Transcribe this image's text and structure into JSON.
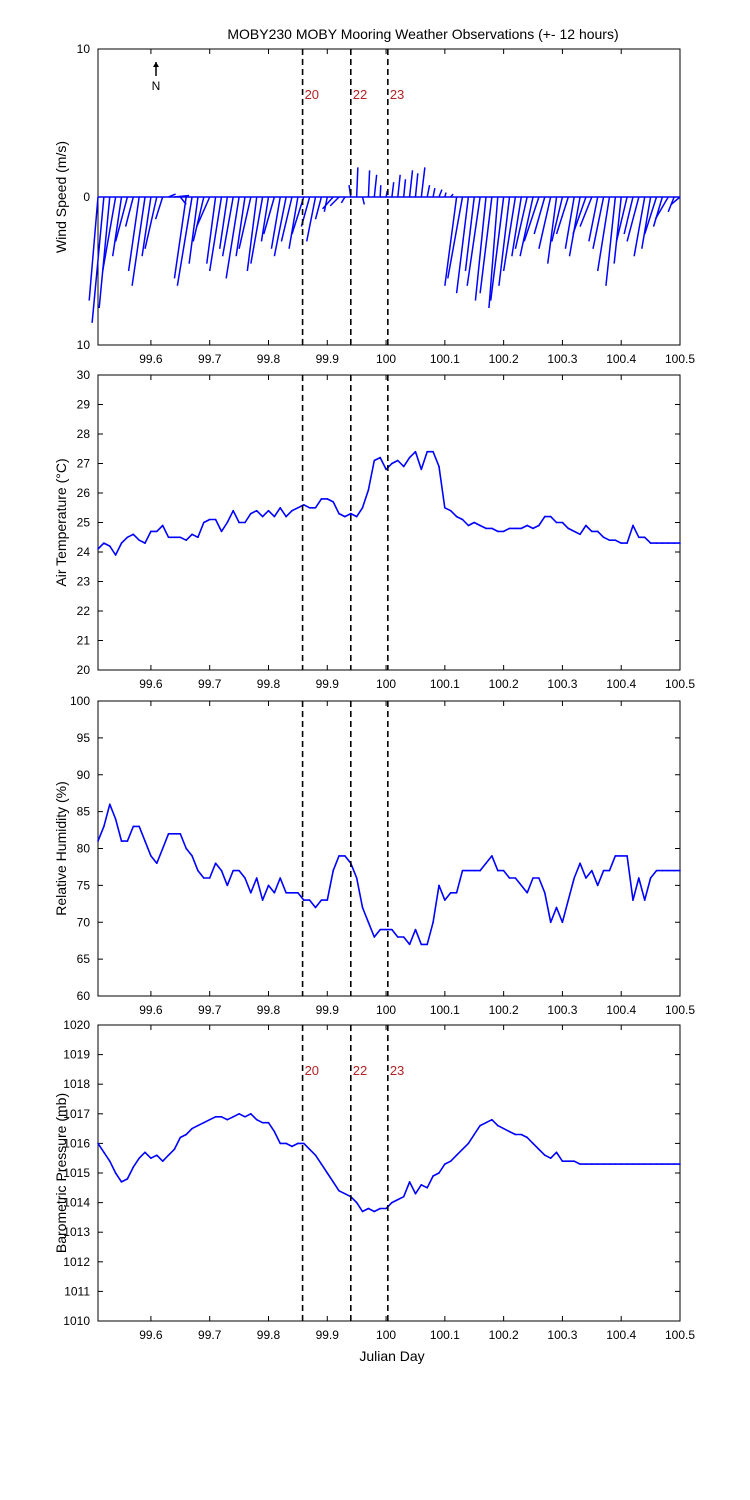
{
  "title": "MOBY230 MOBY Mooring Weather Observations (+- 12 hours)",
  "xlabel": "Julian Day",
  "colors": {
    "series": "#0000ff",
    "event": "#b22222",
    "axis": "#000000"
  },
  "north_label": "N",
  "events": [
    {
      "label": "20",
      "x": 99.858
    },
    {
      "label": "22",
      "x": 99.94
    },
    {
      "label": "23",
      "x": 100.003
    }
  ],
  "chart_data": [
    {
      "type": "quiver",
      "ylabel": "Wind Speed (m/s)",
      "xlim": [
        99.51,
        100.5
      ],
      "ylim": [
        -10,
        10
      ],
      "ytick_labels": [
        "10",
        "0",
        "10"
      ],
      "xticks": [
        99.6,
        99.7,
        99.8,
        99.9,
        100,
        100.1,
        100.2,
        100.3,
        100.4,
        100.5
      ],
      "event_labels": true,
      "x": [
        99.51,
        99.52,
        99.53,
        99.54,
        99.55,
        99.56,
        99.57,
        99.58,
        99.59,
        99.6,
        99.61,
        99.62,
        99.63,
        99.64,
        99.65,
        99.66,
        99.67,
        99.68,
        99.69,
        99.7,
        99.71,
        99.72,
        99.73,
        99.74,
        99.75,
        99.76,
        99.77,
        99.78,
        99.79,
        99.8,
        99.81,
        99.82,
        99.83,
        99.84,
        99.85,
        99.86,
        99.87,
        99.88,
        99.89,
        99.9,
        99.91,
        99.92,
        99.93,
        99.94,
        99.95,
        99.96,
        99.97,
        99.98,
        99.99,
        100.0,
        100.01,
        100.02,
        100.03,
        100.04,
        100.05,
        100.06,
        100.07,
        100.08,
        100.09,
        100.1,
        100.11,
        100.12,
        100.13,
        100.14,
        100.15,
        100.16,
        100.17,
        100.18,
        100.19,
        100.2,
        100.21,
        100.22,
        100.23,
        100.24,
        100.25,
        100.26,
        100.27,
        100.28,
        100.29,
        100.3,
        100.31,
        100.32,
        100.33,
        100.34,
        100.35,
        100.36,
        100.37,
        100.38,
        100.39,
        100.4,
        100.41,
        100.42,
        100.43,
        100.44,
        100.45,
        100.46,
        100.47,
        100.48,
        100.49,
        100.5
      ],
      "u": [
        -1.5,
        -2.0,
        -1.8,
        -2.2,
        -1.5,
        -2.0,
        -1.3,
        -1.8,
        -2.2,
        -1.5,
        -2.0,
        -1.2,
        1.2,
        2.5,
        1.0,
        -2.0,
        -2.5,
        -1.5,
        -1.8,
        -2.2,
        -1.5,
        -2.0,
        -1.3,
        -1.8,
        -2.2,
        -1.5,
        -2.0,
        -1.6,
        -2.0,
        -1.2,
        -1.8,
        -1.5,
        -2.0,
        -1.8,
        -1.5,
        -2.0,
        -1.4,
        -1.5,
        -1.0,
        -0.5,
        -1.8,
        -1.5,
        -0.6,
        -0.3,
        0.2,
        0.3,
        0.2,
        0.4,
        0.1,
        0.2,
        0.3,
        0.4,
        0.3,
        0.5,
        0.4,
        0.6,
        0.4,
        0.3,
        0.5,
        0.2,
        0.4,
        -2.0,
        -2.5,
        -2.0,
        -1.5,
        -2.2,
        -1.8,
        -2.0,
        -1.5,
        -2.2,
        -1.8,
        -2.0,
        -1.6,
        -2.0,
        -2.2,
        -2.5,
        -1.8,
        -2.0,
        -1.5,
        -1.8,
        -2.0,
        -1.5,
        -1.8,
        -2.2,
        -2.0,
        -1.5,
        -1.8,
        -2.0,
        -1.6,
        -1.2,
        -1.8,
        -1.5,
        -2.0,
        -1.8,
        -1.5,
        -2.0,
        -1.5,
        -2.2,
        -1.0,
        -1.5
      ],
      "v": [
        -7.0,
        -8.5,
        -7.5,
        -5.0,
        -4.0,
        -3.0,
        -2.0,
        -5.0,
        -6.0,
        -4.0,
        -3.5,
        -1.5,
        0.2,
        0.1,
        -0.5,
        -5.5,
        -6.0,
        -4.5,
        -3.0,
        -2.0,
        -4.5,
        -5.0,
        -3.5,
        -4.0,
        -5.5,
        -4.0,
        -3.5,
        -5.0,
        -4.5,
        -3.0,
        -2.5,
        -3.5,
        -4.0,
        -3.0,
        -3.5,
        -2.5,
        -2.0,
        -3.0,
        -1.5,
        -1.0,
        -0.8,
        -0.6,
        -0.4,
        0.8,
        2.0,
        -0.5,
        1.8,
        1.5,
        0.8,
        0.4,
        1.0,
        1.5,
        1.2,
        1.8,
        1.6,
        2.0,
        0.8,
        0.6,
        0.5,
        0.3,
        0.2,
        -6.0,
        -5.5,
        -6.5,
        -5.0,
        -6.0,
        -7.0,
        -6.5,
        -7.5,
        -7.0,
        -6.0,
        -5.0,
        -4.0,
        -3.5,
        -4.0,
        -3.0,
        -2.5,
        -3.5,
        -4.5,
        -3.0,
        -2.5,
        -3.5,
        -4.0,
        -2.5,
        -2.0,
        -3.0,
        -3.5,
        -5.0,
        -6.0,
        -4.5,
        -3.0,
        -2.5,
        -3.0,
        -4.0,
        -3.5,
        -2.5,
        -2.0,
        -1.5,
        -1.0,
        -0.5
      ]
    },
    {
      "type": "line",
      "ylabel": "Air Temperature (°C)",
      "xlim": [
        99.51,
        100.5
      ],
      "ylim": [
        20,
        30
      ],
      "yticks": [
        20,
        21,
        22,
        23,
        24,
        25,
        26,
        27,
        28,
        29,
        30
      ],
      "xticks": [
        99.6,
        99.7,
        99.8,
        99.9,
        100,
        100.1,
        100.2,
        100.3,
        100.4,
        100.5
      ],
      "event_labels": false,
      "x": [
        99.51,
        99.52,
        99.53,
        99.54,
        99.55,
        99.56,
        99.57,
        99.58,
        99.59,
        99.6,
        99.61,
        99.62,
        99.63,
        99.64,
        99.65,
        99.66,
        99.67,
        99.68,
        99.69,
        99.7,
        99.71,
        99.72,
        99.73,
        99.74,
        99.75,
        99.76,
        99.77,
        99.78,
        99.79,
        99.8,
        99.81,
        99.82,
        99.83,
        99.84,
        99.85,
        99.86,
        99.87,
        99.88,
        99.89,
        99.9,
        99.91,
        99.92,
        99.93,
        99.94,
        99.95,
        99.96,
        99.97,
        99.98,
        99.99,
        100.0,
        100.01,
        100.02,
        100.03,
        100.04,
        100.05,
        100.06,
        100.07,
        100.08,
        100.09,
        100.1,
        100.11,
        100.12,
        100.13,
        100.14,
        100.15,
        100.16,
        100.17,
        100.18,
        100.19,
        100.2,
        100.21,
        100.22,
        100.23,
        100.24,
        100.25,
        100.26,
        100.27,
        100.28,
        100.29,
        100.3,
        100.31,
        100.32,
        100.33,
        100.34,
        100.35,
        100.36,
        100.37,
        100.38,
        100.39,
        100.4,
        100.41,
        100.42,
        100.43,
        100.44,
        100.45,
        100.46,
        100.47,
        100.48,
        100.49,
        100.5
      ],
      "values": [
        24.1,
        24.3,
        24.2,
        23.9,
        24.3,
        24.5,
        24.6,
        24.4,
        24.3,
        24.7,
        24.7,
        24.9,
        24.5,
        24.5,
        24.5,
        24.4,
        24.6,
        24.5,
        25.0,
        25.1,
        25.1,
        24.7,
        25.0,
        25.4,
        25.0,
        25.0,
        25.3,
        25.4,
        25.2,
        25.4,
        25.2,
        25.5,
        25.2,
        25.4,
        25.5,
        25.6,
        25.5,
        25.5,
        25.8,
        25.8,
        25.7,
        25.3,
        25.2,
        25.3,
        25.2,
        25.5,
        26.1,
        27.1,
        27.2,
        26.8,
        27.0,
        27.1,
        26.9,
        27.2,
        27.4,
        26.8,
        27.4,
        27.4,
        26.9,
        25.5,
        25.4,
        25.2,
        25.1,
        24.9,
        25.0,
        24.9,
        24.8,
        24.8,
        24.7,
        24.7,
        24.8,
        24.8,
        24.8,
        24.9,
        24.8,
        24.9,
        25.2,
        25.2,
        25.0,
        25.0,
        24.8,
        24.7,
        24.6,
        24.9,
        24.7,
        24.7,
        24.5,
        24.4,
        24.4,
        24.3,
        24.3,
        24.9,
        24.5,
        24.5,
        24.3,
        24.3,
        24.3,
        24.3,
        24.3,
        24.3
      ]
    },
    {
      "type": "line",
      "ylabel": "Relative Humidity (%)",
      "xlim": [
        99.51,
        100.5
      ],
      "ylim": [
        60,
        100
      ],
      "yticks": [
        60,
        65,
        70,
        75,
        80,
        85,
        90,
        95,
        100
      ],
      "xticks": [
        99.6,
        99.7,
        99.8,
        99.9,
        100,
        100.1,
        100.2,
        100.3,
        100.4,
        100.5
      ],
      "event_labels": false,
      "x": [
        99.51,
        99.52,
        99.53,
        99.54,
        99.55,
        99.56,
        99.57,
        99.58,
        99.59,
        99.6,
        99.61,
        99.62,
        99.63,
        99.64,
        99.65,
        99.66,
        99.67,
        99.68,
        99.69,
        99.7,
        99.71,
        99.72,
        99.73,
        99.74,
        99.75,
        99.76,
        99.77,
        99.78,
        99.79,
        99.8,
        99.81,
        99.82,
        99.83,
        99.84,
        99.85,
        99.86,
        99.87,
        99.88,
        99.89,
        99.9,
        99.91,
        99.92,
        99.93,
        99.94,
        99.95,
        99.96,
        99.97,
        99.98,
        99.99,
        100.0,
        100.01,
        100.02,
        100.03,
        100.04,
        100.05,
        100.06,
        100.07,
        100.08,
        100.09,
        100.1,
        100.11,
        100.12,
        100.13,
        100.14,
        100.15,
        100.16,
        100.17,
        100.18,
        100.19,
        100.2,
        100.21,
        100.22,
        100.23,
        100.24,
        100.25,
        100.26,
        100.27,
        100.28,
        100.29,
        100.3,
        100.31,
        100.32,
        100.33,
        100.34,
        100.35,
        100.36,
        100.37,
        100.38,
        100.39,
        100.4,
        100.41,
        100.42,
        100.43,
        100.44,
        100.45,
        100.46,
        100.47,
        100.48,
        100.49,
        100.5
      ],
      "values": [
        81,
        83,
        86,
        84,
        81,
        81,
        83,
        83,
        81,
        79,
        78,
        80,
        82,
        82,
        82,
        80,
        79,
        77,
        76,
        76,
        78,
        77,
        75,
        77,
        77,
        76,
        74,
        76,
        73,
        75,
        74,
        76,
        74,
        74,
        74,
        73,
        73,
        72,
        73,
        73,
        77,
        79,
        79,
        78,
        76,
        72,
        70,
        68,
        69,
        69,
        69,
        68,
        68,
        67,
        69,
        67,
        67,
        70,
        75,
        73,
        74,
        74,
        77,
        77,
        77,
        77,
        78,
        79,
        77,
        77,
        76,
        76,
        75,
        74,
        76,
        76,
        74,
        70,
        72,
        70,
        73,
        76,
        78,
        76,
        77,
        75,
        77,
        77,
        79,
        79,
        79,
        73,
        76,
        73,
        76,
        77,
        77,
        77,
        77,
        77
      ]
    },
    {
      "type": "line",
      "ylabel": "Barometric Pressure (mb)",
      "xlim": [
        99.51,
        100.5
      ],
      "ylim": [
        1010,
        1020
      ],
      "yticks": [
        1010,
        1011,
        1012,
        1013,
        1014,
        1015,
        1016,
        1017,
        1018,
        1019,
        1020
      ],
      "xticks": [
        99.6,
        99.7,
        99.8,
        99.9,
        100,
        100.1,
        100.2,
        100.3,
        100.4,
        100.5
      ],
      "event_labels": true,
      "x": [
        99.51,
        99.52,
        99.53,
        99.54,
        99.55,
        99.56,
        99.57,
        99.58,
        99.59,
        99.6,
        99.61,
        99.62,
        99.63,
        99.64,
        99.65,
        99.66,
        99.67,
        99.68,
        99.69,
        99.7,
        99.71,
        99.72,
        99.73,
        99.74,
        99.75,
        99.76,
        99.77,
        99.78,
        99.79,
        99.8,
        99.81,
        99.82,
        99.83,
        99.84,
        99.85,
        99.86,
        99.87,
        99.88,
        99.89,
        99.9,
        99.91,
        99.92,
        99.93,
        99.94,
        99.95,
        99.96,
        99.97,
        99.98,
        99.99,
        100.0,
        100.01,
        100.02,
        100.03,
        100.04,
        100.05,
        100.06,
        100.07,
        100.08,
        100.09,
        100.1,
        100.11,
        100.12,
        100.13,
        100.14,
        100.15,
        100.16,
        100.17,
        100.18,
        100.19,
        100.2,
        100.21,
        100.22,
        100.23,
        100.24,
        100.25,
        100.26,
        100.27,
        100.28,
        100.29,
        100.3,
        100.31,
        100.32,
        100.33,
        100.34,
        100.35,
        100.36,
        100.37,
        100.38,
        100.39,
        100.4,
        100.41,
        100.42,
        100.43,
        100.44,
        100.45,
        100.46,
        100.47,
        100.48,
        100.49,
        100.5
      ],
      "values": [
        1016.0,
        1015.7,
        1015.4,
        1015.0,
        1014.7,
        1014.8,
        1015.2,
        1015.5,
        1015.7,
        1015.5,
        1015.6,
        1015.4,
        1015.6,
        1015.8,
        1016.2,
        1016.3,
        1016.5,
        1016.6,
        1016.7,
        1016.8,
        1016.9,
        1016.9,
        1016.8,
        1016.9,
        1017.0,
        1016.9,
        1017.0,
        1016.8,
        1016.7,
        1016.7,
        1016.4,
        1016.0,
        1016.0,
        1015.9,
        1016.0,
        1016.0,
        1015.8,
        1015.6,
        1015.3,
        1015.0,
        1014.7,
        1014.4,
        1014.3,
        1014.2,
        1014.0,
        1013.7,
        1013.8,
        1013.7,
        1013.8,
        1013.8,
        1014.0,
        1014.1,
        1014.2,
        1014.7,
        1014.3,
        1014.6,
        1014.5,
        1014.9,
        1015.0,
        1015.3,
        1015.4,
        1015.6,
        1015.8,
        1016.0,
        1016.3,
        1016.6,
        1016.7,
        1016.8,
        1016.6,
        1016.5,
        1016.4,
        1016.3,
        1016.3,
        1016.2,
        1016.0,
        1015.8,
        1015.6,
        1015.5,
        1015.7,
        1015.4,
        1015.4,
        1015.4,
        1015.3,
        1015.3,
        1015.3,
        1015.3,
        1015.3,
        1015.3,
        1015.3,
        1015.3,
        1015.3,
        1015.3,
        1015.3,
        1015.3,
        1015.3,
        1015.3,
        1015.3,
        1015.3,
        1015.3,
        1015.3
      ]
    }
  ]
}
